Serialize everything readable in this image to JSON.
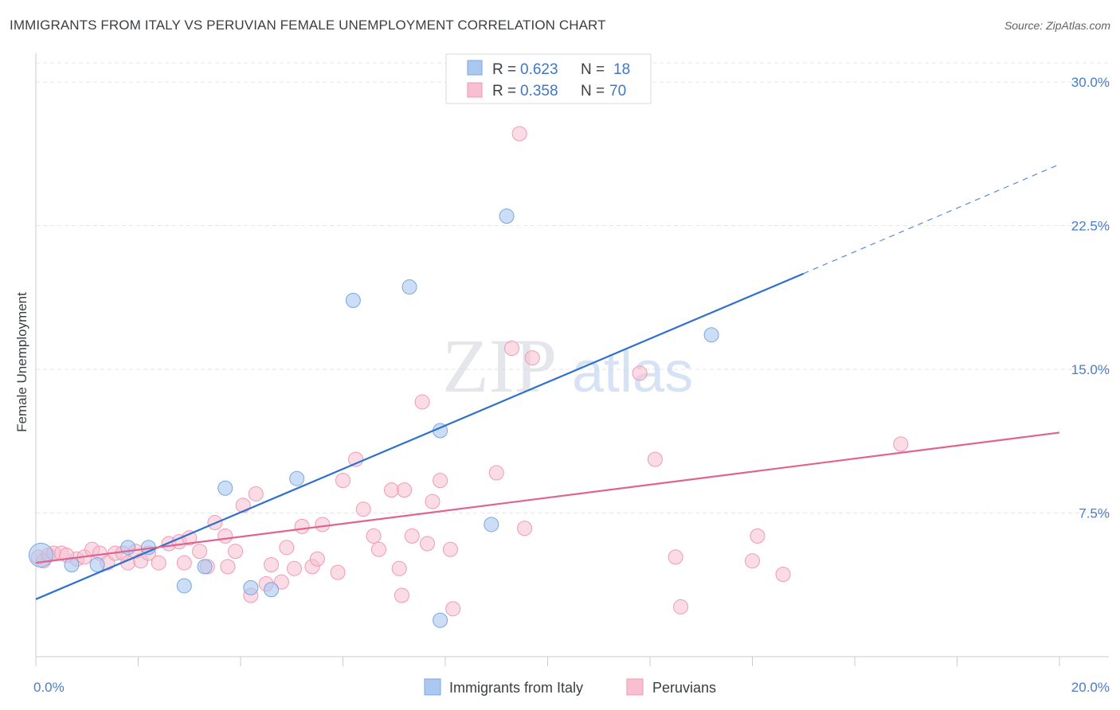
{
  "title": "IMMIGRANTS FROM ITALY VS PERUVIAN FEMALE UNEMPLOYMENT CORRELATION CHART",
  "source": "Source: ZipAtlas.com",
  "watermark": {
    "zip": "ZIP",
    "atlas": "atlas"
  },
  "legend": [
    {
      "r_label": "R =",
      "r_value": "0.623",
      "n_label": "N =",
      "n_value": "18"
    },
    {
      "r_label": "R =",
      "r_value": "0.358",
      "n_label": "N =",
      "n_value": "70"
    }
  ],
  "bottom_legend": [
    "Immigrants from Italy",
    "Peruvians"
  ],
  "colors": {
    "italy_fill": "#aac8f0",
    "italy_stroke": "#7aa6e0",
    "italy_line": "#2f6fce",
    "peru_fill": "#f7bfd0",
    "peru_stroke": "#ee9ab6",
    "peru_line": "#e0648f",
    "grid": "#e3e6ea",
    "tick_text": "#4a7cc7"
  },
  "chart_data": {
    "type": "scatter",
    "title": "IMMIGRANTS FROM ITALY VS PERUVIAN FEMALE UNEMPLOYMENT CORRELATION CHART",
    "xlabel": "",
    "ylabel": "Female Unemployment",
    "xlim": [
      0,
      20
    ],
    "ylim": [
      0,
      31
    ],
    "x_tick_labels": [
      "0.0%",
      "20.0%"
    ],
    "y_ticks": [
      7.5,
      15.0,
      22.5,
      30.0
    ],
    "y_tick_labels": [
      "7.5%",
      "15.0%",
      "22.5%",
      "30.0%"
    ],
    "grid": true,
    "legend_position": "top-center",
    "series": [
      {
        "name": "Immigrants from Italy",
        "r": 0.623,
        "n": 18,
        "trend": {
          "x0": 0,
          "y0": 3.0,
          "x1": 15.0,
          "y1": 20.0,
          "dash_x1": 20.0,
          "dash_y1": 25.7
        },
        "points": [
          {
            "x": 0.1,
            "y": 5.3,
            "big": true
          },
          {
            "x": 0.7,
            "y": 4.8
          },
          {
            "x": 1.2,
            "y": 4.8
          },
          {
            "x": 1.8,
            "y": 5.7
          },
          {
            "x": 2.2,
            "y": 5.7
          },
          {
            "x": 2.9,
            "y": 3.7
          },
          {
            "x": 3.3,
            "y": 4.7
          },
          {
            "x": 3.7,
            "y": 8.8
          },
          {
            "x": 4.2,
            "y": 3.6
          },
          {
            "x": 4.6,
            "y": 3.5
          },
          {
            "x": 5.1,
            "y": 9.3
          },
          {
            "x": 6.2,
            "y": 18.6
          },
          {
            "x": 7.3,
            "y": 19.3
          },
          {
            "x": 7.9,
            "y": 11.8
          },
          {
            "x": 7.9,
            "y": 1.9
          },
          {
            "x": 8.9,
            "y": 6.9
          },
          {
            "x": 9.2,
            "y": 23.0
          },
          {
            "x": 13.2,
            "y": 16.8
          }
        ]
      },
      {
        "name": "Peruvians",
        "r": 0.358,
        "n": 70,
        "trend": {
          "x0": 0,
          "y0": 4.9,
          "x1": 20.0,
          "y1": 11.7
        },
        "points": [
          {
            "x": 0.05,
            "y": 5.2
          },
          {
            "x": 0.15,
            "y": 5.0
          },
          {
            "x": 0.25,
            "y": 5.3
          },
          {
            "x": 0.35,
            "y": 5.4
          },
          {
            "x": 0.5,
            "y": 5.4
          },
          {
            "x": 0.8,
            "y": 5.1
          },
          {
            "x": 0.95,
            "y": 5.2
          },
          {
            "x": 1.1,
            "y": 5.6
          },
          {
            "x": 1.25,
            "y": 5.4
          },
          {
            "x": 1.4,
            "y": 4.9
          },
          {
            "x": 1.55,
            "y": 5.4
          },
          {
            "x": 1.7,
            "y": 5.4
          },
          {
            "x": 1.8,
            "y": 4.9
          },
          {
            "x": 1.95,
            "y": 5.5
          },
          {
            "x": 2.05,
            "y": 5.0
          },
          {
            "x": 2.2,
            "y": 5.4
          },
          {
            "x": 2.4,
            "y": 4.9
          },
          {
            "x": 2.6,
            "y": 5.9
          },
          {
            "x": 2.8,
            "y": 6.0
          },
          {
            "x": 2.9,
            "y": 4.9
          },
          {
            "x": 3.0,
            "y": 6.2
          },
          {
            "x": 3.2,
            "y": 5.5
          },
          {
            "x": 3.35,
            "y": 4.7
          },
          {
            "x": 3.5,
            "y": 7.0
          },
          {
            "x": 3.7,
            "y": 6.3
          },
          {
            "x": 3.75,
            "y": 4.7
          },
          {
            "x": 3.9,
            "y": 5.5
          },
          {
            "x": 4.05,
            "y": 7.9
          },
          {
            "x": 4.2,
            "y": 3.2
          },
          {
            "x": 4.3,
            "y": 8.5
          },
          {
            "x": 4.5,
            "y": 3.8
          },
          {
            "x": 4.6,
            "y": 4.8
          },
          {
            "x": 4.8,
            "y": 3.9
          },
          {
            "x": 4.9,
            "y": 5.7
          },
          {
            "x": 5.05,
            "y": 4.6
          },
          {
            "x": 5.2,
            "y": 6.8
          },
          {
            "x": 5.4,
            "y": 4.7
          },
          {
            "x": 5.5,
            "y": 5.1
          },
          {
            "x": 5.6,
            "y": 6.9
          },
          {
            "x": 5.9,
            "y": 4.4
          },
          {
            "x": 6.0,
            "y": 9.2
          },
          {
            "x": 6.25,
            "y": 10.3
          },
          {
            "x": 6.4,
            "y": 7.7
          },
          {
            "x": 6.6,
            "y": 6.3
          },
          {
            "x": 6.7,
            "y": 5.6
          },
          {
            "x": 6.95,
            "y": 8.7
          },
          {
            "x": 7.1,
            "y": 4.6
          },
          {
            "x": 7.15,
            "y": 3.2
          },
          {
            "x": 7.2,
            "y": 8.7
          },
          {
            "x": 7.35,
            "y": 6.3
          },
          {
            "x": 7.55,
            "y": 13.3
          },
          {
            "x": 7.65,
            "y": 5.9
          },
          {
            "x": 7.75,
            "y": 8.1
          },
          {
            "x": 7.9,
            "y": 9.2
          },
          {
            "x": 8.1,
            "y": 5.6
          },
          {
            "x": 8.15,
            "y": 2.5
          },
          {
            "x": 9.0,
            "y": 9.6
          },
          {
            "x": 9.3,
            "y": 16.1
          },
          {
            "x": 9.45,
            "y": 27.3
          },
          {
            "x": 9.55,
            "y": 6.7
          },
          {
            "x": 9.7,
            "y": 15.6
          },
          {
            "x": 11.8,
            "y": 14.8
          },
          {
            "x": 12.1,
            "y": 10.3
          },
          {
            "x": 12.5,
            "y": 5.2
          },
          {
            "x": 12.6,
            "y": 2.6
          },
          {
            "x": 14.0,
            "y": 5.0
          },
          {
            "x": 14.1,
            "y": 6.3
          },
          {
            "x": 14.6,
            "y": 4.3
          },
          {
            "x": 16.9,
            "y": 11.1
          },
          {
            "x": 0.6,
            "y": 5.3
          }
        ]
      }
    ]
  }
}
